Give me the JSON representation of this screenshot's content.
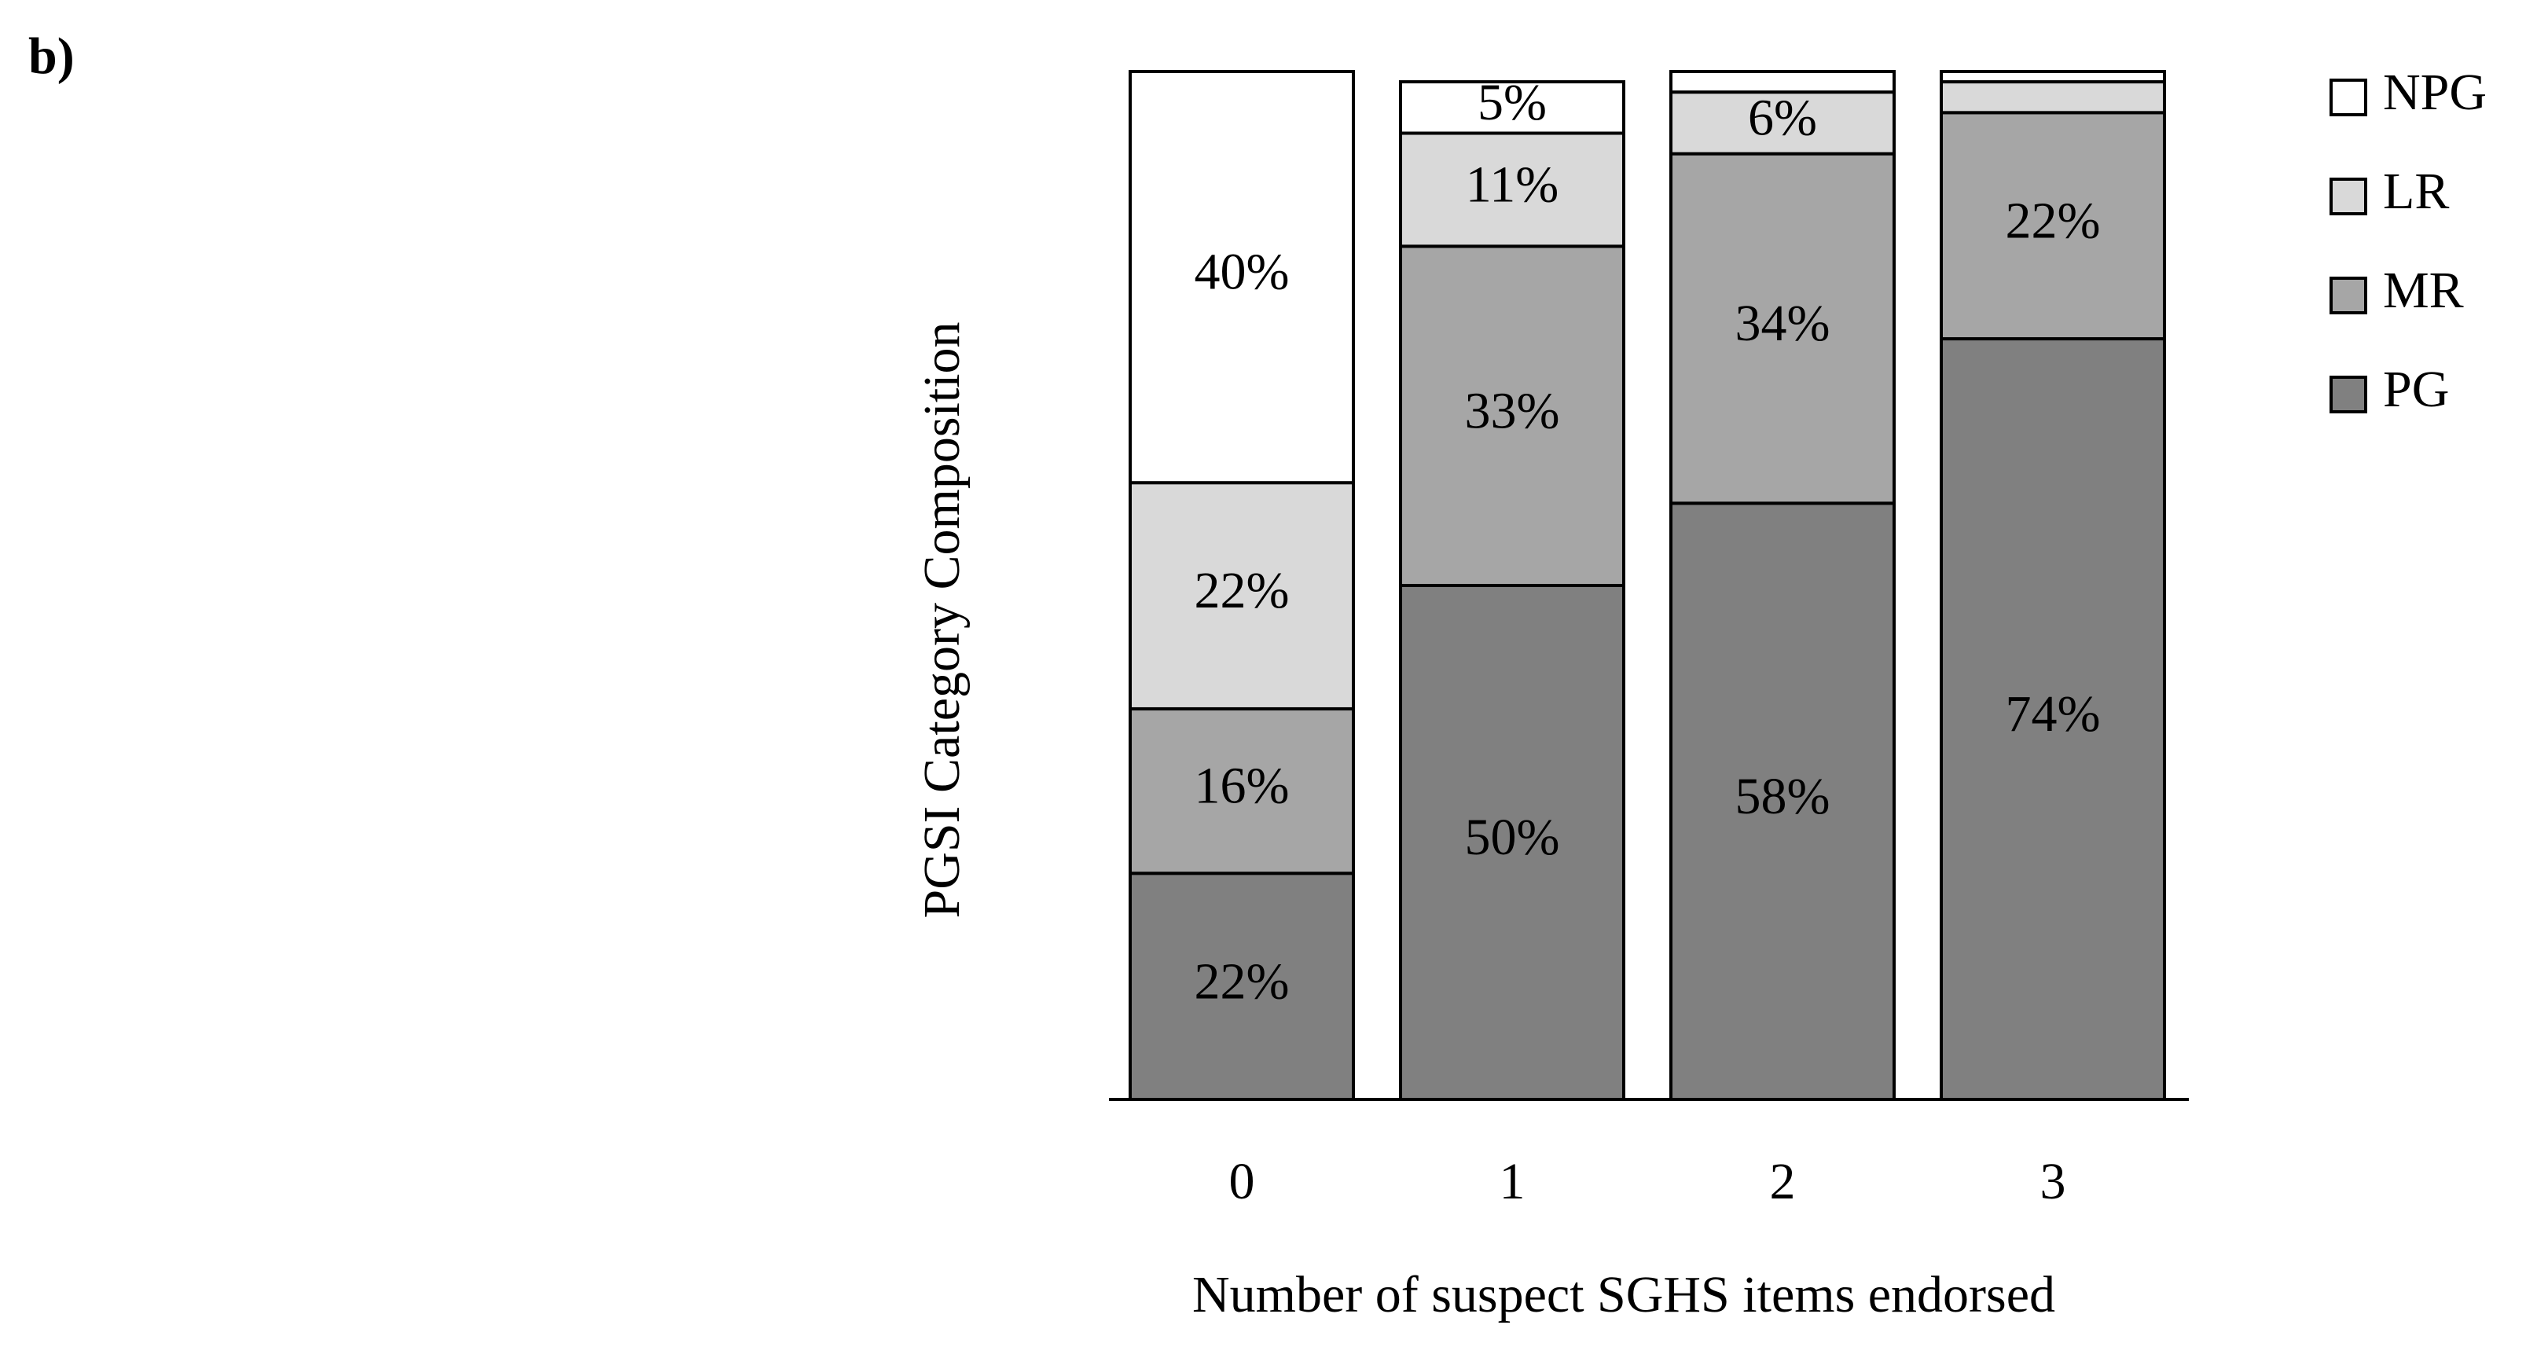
{
  "chart_data": {
    "type": "stacked_bar",
    "panel_label": "b)",
    "x_label": "Number of suspect SGHS items endorsed",
    "y_label": "PGSI Category Composition",
    "categories": [
      "0",
      "1",
      "2",
      "3"
    ],
    "ylim": [
      0,
      100
    ],
    "series": [
      {
        "name": "PG",
        "color": "#808080",
        "values": [
          22,
          50,
          58,
          74
        ],
        "value_labels": [
          "22%",
          "50%",
          "58%",
          "74%"
        ]
      },
      {
        "name": "MR",
        "color": "#a6a6a6",
        "values": [
          16,
          33,
          34,
          22
        ],
        "value_labels": [
          "16%",
          "33%",
          "34%",
          "22%"
        ]
      },
      {
        "name": "LR",
        "color": "#d9d9d9",
        "values": [
          22,
          11,
          6,
          3
        ],
        "value_labels": [
          "22%",
          "11%",
          "6%",
          null
        ]
      },
      {
        "name": "NPG",
        "color": "#ffffff",
        "values": [
          40,
          5,
          2,
          1
        ],
        "value_labels": [
          "40%",
          "5%",
          null,
          null
        ]
      }
    ],
    "legend": "top-right"
  }
}
